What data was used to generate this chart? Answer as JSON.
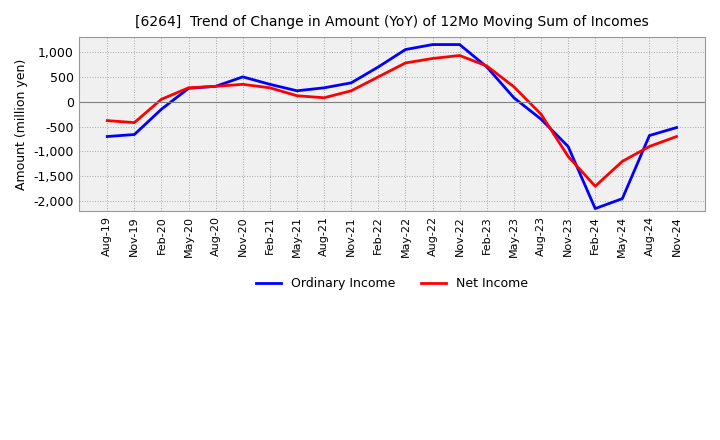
{
  "title": "[6264]  Trend of Change in Amount (YoY) of 12Mo Moving Sum of Incomes",
  "ylabel": "Amount (million yen)",
  "ylim": [
    -2200,
    1300
  ],
  "yticks": [
    1000,
    500,
    0,
    -500,
    -1000,
    -1500,
    -2000
  ],
  "background_color": "#ffffff",
  "plot_bg_color": "#f0f0f0",
  "grid_color": "#aaaaaa",
  "ordinary_income_color": "#0000ff",
  "net_income_color": "#ff0000",
  "x_labels": [
    "Aug-19",
    "Nov-19",
    "Feb-20",
    "May-20",
    "Aug-20",
    "Nov-20",
    "Feb-21",
    "May-21",
    "Aug-21",
    "Nov-21",
    "Feb-22",
    "May-22",
    "Aug-22",
    "Nov-22",
    "Feb-23",
    "May-23",
    "Aug-23",
    "Nov-23",
    "Feb-24",
    "May-24",
    "Aug-24",
    "Nov-24"
  ],
  "ordinary_income": [
    -700,
    -660,
    -150,
    270,
    310,
    500,
    350,
    220,
    280,
    380,
    700,
    1050,
    1150,
    1150,
    700,
    80,
    -350,
    -900,
    -2150,
    -1950,
    -680,
    -520
  ],
  "net_income": [
    -380,
    -420,
    50,
    280,
    310,
    350,
    280,
    120,
    80,
    220,
    500,
    780,
    870,
    930,
    720,
    300,
    -250,
    -1100,
    -1700,
    -1200,
    -900,
    -700
  ]
}
